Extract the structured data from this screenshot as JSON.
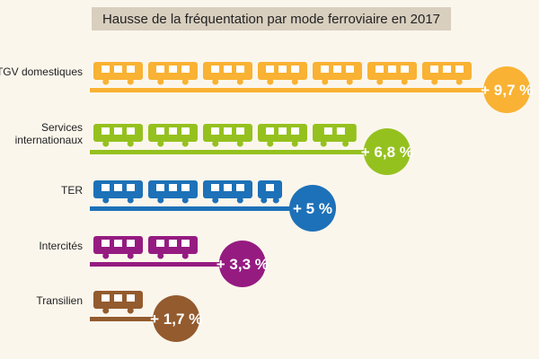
{
  "chart_data": {
    "type": "bar",
    "title": "Hausse de la fréquentation par mode ferroviaire en 2017",
    "categories": [
      [
        "TGV domestiques"
      ],
      [
        "Services",
        "internationaux"
      ],
      [
        "TER"
      ],
      [
        "Intercités"
      ],
      [
        "Transilien"
      ]
    ],
    "values": [
      9.7,
      6.8,
      5,
      3.3,
      1.7
    ],
    "value_labels": [
      "+ 9,7 %",
      "+ 6,8 %",
      "+ 5 %",
      "+ 3,3 %",
      "+ 1,7 %"
    ],
    "colors": [
      "#f9b233",
      "#95c11f",
      "#1d71b8",
      "#951b81",
      "#935b2e"
    ],
    "legend": "none",
    "grid": false
  }
}
